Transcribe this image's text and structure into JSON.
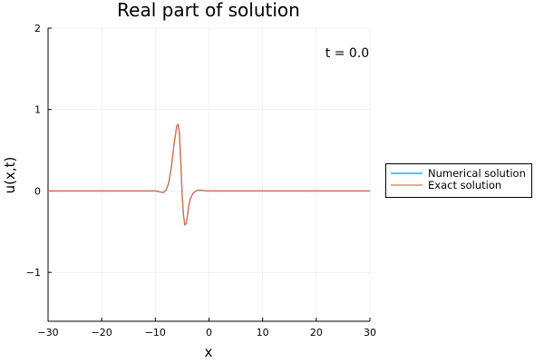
{
  "chart_data": {
    "type": "line",
    "title": "Real part of solution",
    "xlabel": "x",
    "ylabel": "u(x,t)",
    "xlim": [
      -30,
      30
    ],
    "ylim": [
      -1.6,
      2
    ],
    "xticks": [
      -30,
      -20,
      -10,
      0,
      10,
      20,
      30
    ],
    "xtick_labels": [
      "−30",
      "−20",
      "−10",
      "0",
      "10",
      "20",
      "30"
    ],
    "yticks": [
      -1,
      0,
      1,
      2
    ],
    "ytick_labels": [
      "−1",
      "0",
      "1",
      "2"
    ],
    "grid": true,
    "legend_position": "outside-right",
    "annotation": "t = 0.0",
    "series": [
      {
        "name": "Numerical solution",
        "color": "#009AFA",
        "x": [
          -30,
          -14,
          -12,
          -11,
          -10,
          -9.5,
          -9,
          -8.5,
          -8,
          -7.5,
          -7,
          -6.5,
          -6,
          -5.75,
          -5.5,
          -5.25,
          -5,
          -4.75,
          -4.5,
          -4.25,
          -4,
          -3.75,
          -3.5,
          -3,
          -2.5,
          -2,
          -1.5,
          -1,
          0,
          30
        ],
        "y": [
          0,
          0,
          0,
          0,
          0,
          -0.005,
          -0.015,
          -0.02,
          0.01,
          0.1,
          0.3,
          0.58,
          0.8,
          0.82,
          0.7,
          0.35,
          -0.05,
          -0.3,
          -0.42,
          -0.4,
          -0.3,
          -0.18,
          -0.1,
          -0.03,
          -0.005,
          0.01,
          0.01,
          0.005,
          0,
          0
        ]
      },
      {
        "name": "Exact solution",
        "color": "#E26F46",
        "x": [
          -30,
          -14,
          -12,
          -11,
          -10,
          -9.5,
          -9,
          -8.5,
          -8,
          -7.5,
          -7,
          -6.5,
          -6,
          -5.75,
          -5.5,
          -5.25,
          -5,
          -4.75,
          -4.5,
          -4.25,
          -4,
          -3.75,
          -3.5,
          -3,
          -2.5,
          -2,
          -1.5,
          -1,
          0,
          30
        ],
        "y": [
          0,
          0,
          0,
          0,
          0,
          -0.005,
          -0.015,
          -0.02,
          0.01,
          0.1,
          0.3,
          0.58,
          0.8,
          0.82,
          0.7,
          0.35,
          -0.05,
          -0.3,
          -0.42,
          -0.4,
          -0.3,
          -0.18,
          -0.1,
          -0.03,
          -0.005,
          0.01,
          0.01,
          0.005,
          0,
          0
        ]
      }
    ]
  }
}
